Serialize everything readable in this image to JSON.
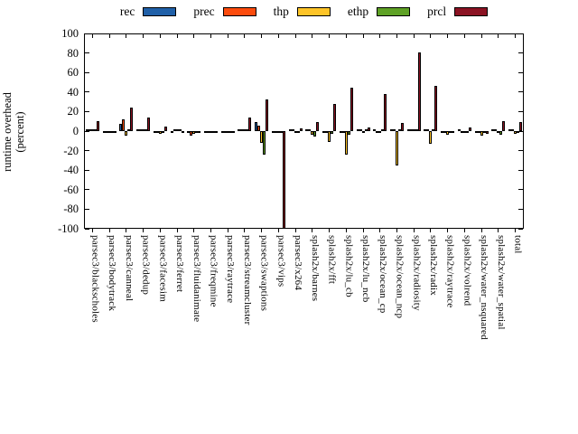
{
  "y_axis": {
    "label_line1": "runtime overhead",
    "label_line2": "(percent)",
    "ticks": [
      100,
      80,
      60,
      40,
      20,
      0,
      -20,
      -40,
      -60,
      -80,
      -100
    ]
  },
  "legend": {
    "items": [
      {
        "label": "rec",
        "color": "#2060a8"
      },
      {
        "label": "prec",
        "color": "#fc4b0d"
      },
      {
        "label": "thp",
        "color": "#fdc428"
      },
      {
        "label": "ethp",
        "color": "#5ea125"
      },
      {
        "label": "prcl",
        "color": "#8b1323"
      }
    ]
  },
  "chart_data": {
    "type": "bar",
    "title": "",
    "xlabel": "",
    "ylabel": "runtime overhead (percent)",
    "ylim": [
      -100,
      100
    ],
    "grid": false,
    "legend_position": "top",
    "categories": [
      "parsec3/blackscholes",
      "parsec3/bodytrack",
      "parsec3/canneal",
      "parsec3/dedup",
      "parsec3/facesim",
      "parsec3/ferret",
      "parsec3/fluidanimate",
      "parsec3/freqmine",
      "parsec3/raytrace",
      "parsec3/streamcluster",
      "parsec3/swaptions",
      "parsec3/vips",
      "parsec3/x264",
      "splash2x/barnes",
      "splash2x/fft",
      "splash2x/lu_cb",
      "splash2x/lu_ncb",
      "splash2x/ocean_cp",
      "splash2x/ocean_ncp",
      "splash2x/radiosity",
      "splash2x/radix",
      "splash2x/raytrace",
      "splash2x/volrend",
      "splash2x/water_nsquared",
      "splash2x/water_spatial",
      "total"
    ],
    "series": [
      {
        "name": "rec",
        "color": "#2060a8",
        "values": [
          1,
          -1,
          7,
          1,
          -1,
          -2,
          -1,
          -1.5,
          -1,
          2,
          9,
          -1,
          1,
          2,
          -1,
          -1,
          1,
          1,
          2,
          2,
          2,
          -1,
          1,
          -1,
          1,
          1.5
        ]
      },
      {
        "name": "prec",
        "color": "#fc4b0d",
        "values": [
          1.5,
          -1,
          12,
          1.5,
          -1,
          1,
          -5,
          -1,
          -1,
          1.5,
          6,
          -1,
          1,
          1,
          -1,
          -1.5,
          1,
          -2,
          2,
          1,
          1,
          -1.5,
          -1,
          -1.5,
          1,
          1
        ]
      },
      {
        "name": "thp",
        "color": "#fdc428",
        "values": [
          1,
          -2,
          -4.5,
          1,
          -3,
          1,
          -2.5,
          -1,
          -1.5,
          2,
          -12,
          -1.5,
          -1,
          -4,
          -11,
          -24,
          -1,
          -1.5,
          -35,
          1,
          -13,
          -4,
          -2,
          -5,
          -2,
          -3
        ]
      },
      {
        "name": "ethp",
        "color": "#5ea125",
        "values": [
          1,
          -1.5,
          1,
          2,
          -1,
          1.5,
          -1,
          -1,
          -1,
          1,
          -24,
          -1,
          -1.5,
          -5.5,
          -3,
          -4,
          1,
          1,
          1,
          1.5,
          1,
          -1,
          -1,
          -2,
          -4,
          -1
        ]
      },
      {
        "name": "prcl",
        "color": "#8b1323",
        "values": [
          10,
          -1,
          24,
          13.5,
          5,
          -2,
          -1,
          -1.5,
          -1,
          14,
          32,
          -100,
          3,
          9,
          28,
          44,
          4,
          38,
          8,
          81,
          46,
          -2,
          4,
          -3,
          10,
          9
        ]
      }
    ]
  }
}
